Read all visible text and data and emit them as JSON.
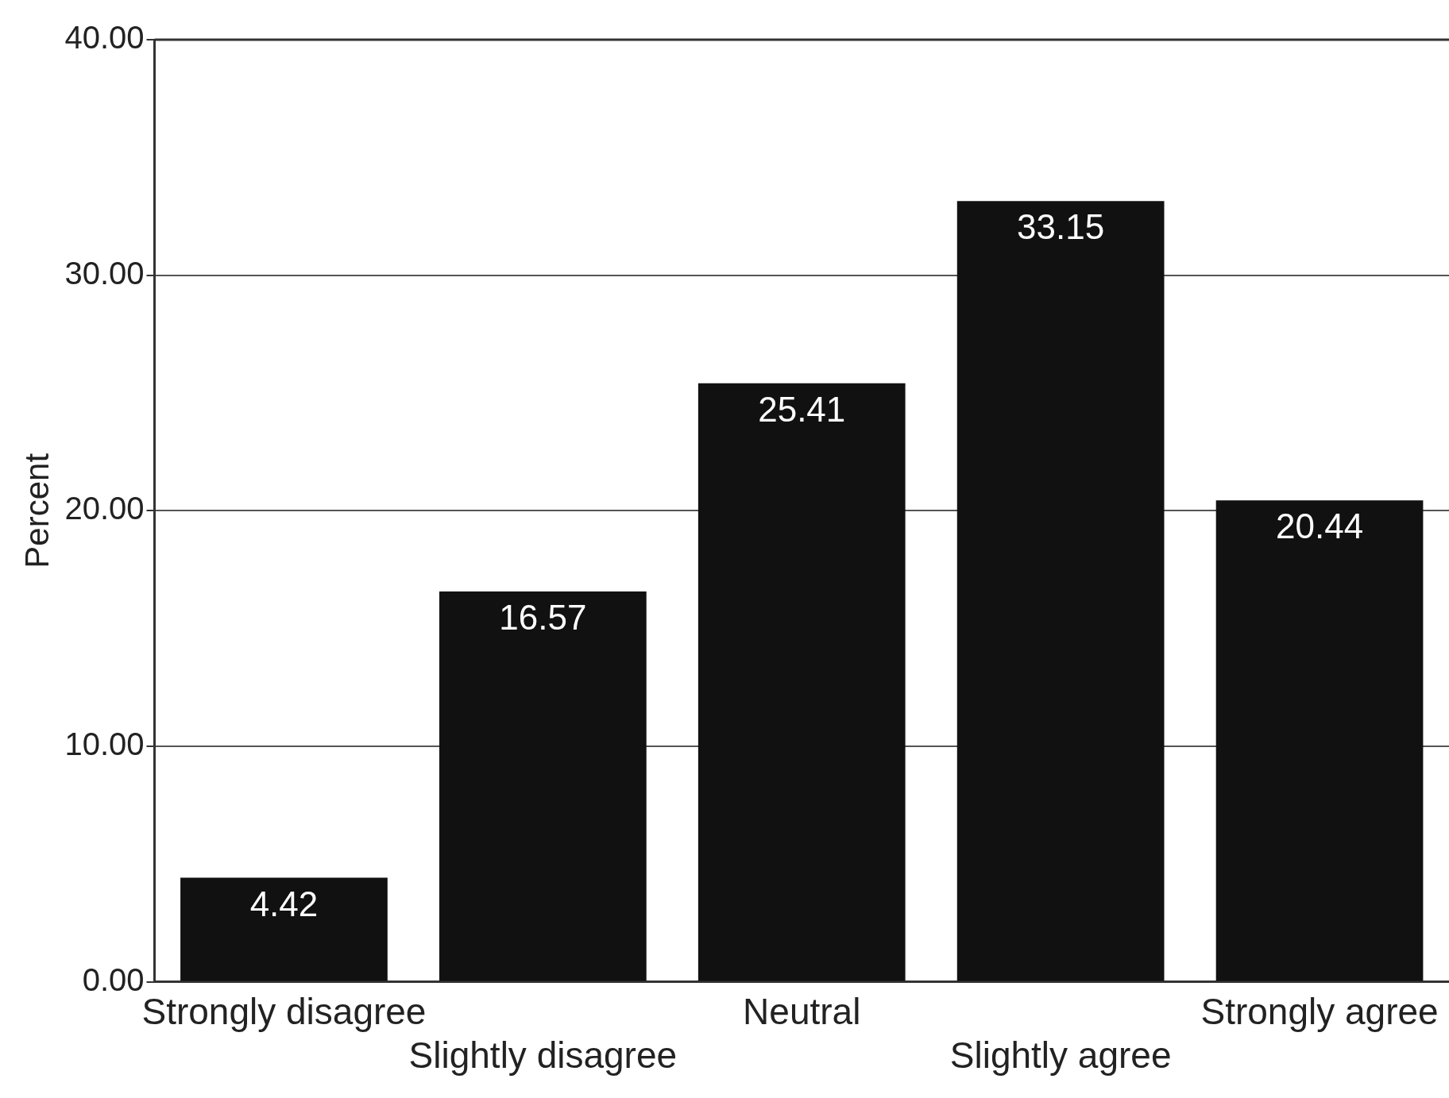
{
  "chart_data": {
    "type": "bar",
    "ylabel": "Percent",
    "categories": [
      "Strongly disagree",
      "Slightly disagree",
      "Neutral",
      "Slightly agree",
      "Strongly agree"
    ],
    "values": [
      4.42,
      16.57,
      25.41,
      33.15,
      20.44
    ],
    "color": "#111111",
    "ylim": [
      0,
      40
    ],
    "yticks": [
      {
        "value": 0,
        "label": "0.00"
      },
      {
        "value": 10,
        "label": "10.00"
      },
      {
        "value": 20,
        "label": "20.00"
      },
      {
        "value": 30,
        "label": "30.00"
      },
      {
        "value": 40,
        "label": "40.00"
      }
    ],
    "grid": "y",
    "data_labels": true,
    "legend": false
  }
}
